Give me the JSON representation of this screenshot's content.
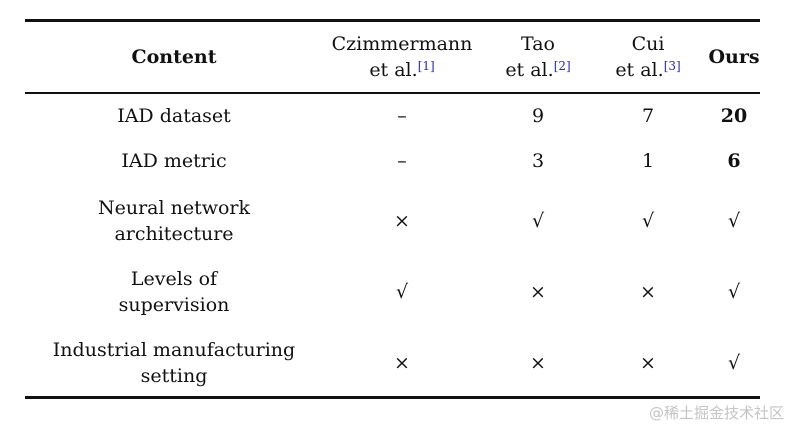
{
  "table": {
    "headers": [
      {
        "line1": "Content"
      },
      {
        "line1": "Czimmermann",
        "line2": "et al.",
        "ref": "[1]"
      },
      {
        "line1": "Tao",
        "line2": "et al.",
        "ref": "[2]"
      },
      {
        "line1": "Cui",
        "line2": "et al.",
        "ref": "[3]"
      },
      {
        "line1": "Ours"
      }
    ],
    "rows": [
      {
        "label": [
          "IAD dataset"
        ],
        "values": [
          "–",
          "9",
          "7",
          "20"
        ]
      },
      {
        "label": [
          "IAD metric"
        ],
        "values": [
          "–",
          "3",
          "1",
          "6"
        ]
      },
      {
        "label": [
          "Neural network",
          "architecture"
        ],
        "values": [
          "×",
          "√",
          "√",
          "√"
        ]
      },
      {
        "label": [
          "Levels of",
          "supervision"
        ],
        "values": [
          "√",
          "×",
          "×",
          "√"
        ]
      },
      {
        "label": [
          "Industrial manufacturing",
          "setting"
        ],
        "values": [
          "×",
          "×",
          "×",
          "√"
        ]
      }
    ]
  },
  "watermark": "@稀土掘金技术社区"
}
